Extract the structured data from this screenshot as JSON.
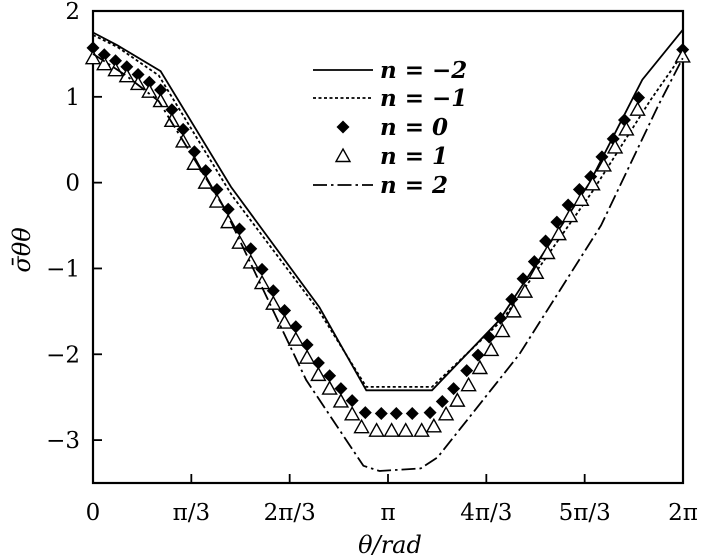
{
  "chart_data": {
    "type": "line",
    "title": "",
    "xlabel": "θ/rad",
    "ylabel": "σ̄θθ",
    "xlim": [
      0,
      6.2832
    ],
    "ylim": [
      -3.5,
      2
    ],
    "x_ticks": [
      {
        "value": 0,
        "label": "0"
      },
      {
        "value": 1.0472,
        "label": "π/3"
      },
      {
        "value": 2.0944,
        "label": "2π/3"
      },
      {
        "value": 3.1416,
        "label": "π"
      },
      {
        "value": 4.1888,
        "label": "4π/3"
      },
      {
        "value": 5.236,
        "label": "5π/3"
      },
      {
        "value": 6.2832,
        "label": "2π"
      }
    ],
    "y_ticks": [
      {
        "value": 2,
        "label": "2"
      },
      {
        "value": 1,
        "label": "1"
      },
      {
        "value": 0,
        "label": "0"
      },
      {
        "value": -1,
        "label": "−1"
      },
      {
        "value": -2,
        "label": "−2"
      },
      {
        "value": -3,
        "label": "−3"
      }
    ],
    "grid": false,
    "legend_position": "top-center",
    "series": [
      {
        "name": "n = −2",
        "style": "solid",
        "color": "#000000",
        "x": [
          0,
          0.26,
          0.72,
          1.47,
          2.41,
          2.91,
          3.61,
          4.33,
          5.29,
          5.85,
          6.28
        ],
        "y": [
          1.75,
          1.6,
          1.3,
          -0.05,
          -1.45,
          -2.42,
          -2.42,
          -1.6,
          0.0,
          1.2,
          1.78
        ]
      },
      {
        "name": "n = −1",
        "style": "dotted",
        "color": "#000000",
        "x": [
          0,
          0.26,
          0.7,
          1.48,
          2.41,
          2.91,
          3.61,
          4.36,
          5.32,
          5.93,
          6.28
        ],
        "y": [
          1.72,
          1.58,
          1.25,
          -0.15,
          -1.5,
          -2.38,
          -2.38,
          -1.6,
          -0.1,
          0.95,
          1.5
        ]
      },
      {
        "name": "n = 0",
        "style": "diamond",
        "color": "#000000",
        "x": [
          0.0,
          0.12,
          0.24,
          0.36,
          0.48,
          0.6,
          0.72,
          0.84,
          0.96,
          1.08,
          1.2,
          1.32,
          1.44,
          1.56,
          1.68,
          1.8,
          1.92,
          2.04,
          2.16,
          2.28,
          2.4,
          2.52,
          2.64,
          2.76,
          2.9,
          3.07,
          3.23,
          3.4,
          3.59,
          3.72,
          3.84,
          3.98,
          4.1,
          4.22,
          4.34,
          4.46,
          4.58,
          4.7,
          4.82,
          4.94,
          5.06,
          5.18,
          5.3,
          5.42,
          5.54,
          5.66,
          5.81,
          6.28
        ],
        "y": [
          1.57,
          1.49,
          1.42,
          1.35,
          1.26,
          1.17,
          1.08,
          0.85,
          0.62,
          0.36,
          0.14,
          -0.08,
          -0.31,
          -0.54,
          -0.77,
          -1.01,
          -1.26,
          -1.49,
          -1.68,
          -1.89,
          -2.1,
          -2.25,
          -2.4,
          -2.54,
          -2.68,
          -2.69,
          -2.69,
          -2.69,
          -2.68,
          -2.55,
          -2.4,
          -2.19,
          -2.01,
          -1.8,
          -1.58,
          -1.36,
          -1.12,
          -0.92,
          -0.68,
          -0.46,
          -0.26,
          -0.08,
          0.07,
          0.3,
          0.51,
          0.73,
          0.99,
          1.55
        ]
      },
      {
        "name": "n = 1",
        "style": "triangle",
        "color": "#000000",
        "x": [
          0.0,
          0.12,
          0.24,
          0.36,
          0.48,
          0.6,
          0.72,
          0.84,
          0.96,
          1.08,
          1.2,
          1.32,
          1.44,
          1.56,
          1.68,
          1.8,
          1.92,
          2.04,
          2.16,
          2.28,
          2.4,
          2.52,
          2.64,
          2.76,
          2.86,
          3.02,
          3.18,
          3.33,
          3.5,
          3.63,
          3.76,
          3.88,
          4.0,
          4.12,
          4.24,
          4.36,
          4.48,
          4.6,
          4.72,
          4.84,
          4.96,
          5.08,
          5.2,
          5.32,
          5.44,
          5.56,
          5.68,
          5.8,
          6.28
        ],
        "y": [
          1.45,
          1.38,
          1.31,
          1.24,
          1.15,
          1.06,
          0.95,
          0.72,
          0.48,
          0.22,
          0.0,
          -0.22,
          -0.46,
          -0.7,
          -0.93,
          -1.17,
          -1.41,
          -1.63,
          -1.83,
          -2.04,
          -2.24,
          -2.4,
          -2.55,
          -2.7,
          -2.85,
          -2.89,
          -2.89,
          -2.89,
          -2.89,
          -2.84,
          -2.7,
          -2.54,
          -2.36,
          -2.16,
          -1.95,
          -1.73,
          -1.5,
          -1.27,
          -1.05,
          -0.82,
          -0.6,
          -0.39,
          -0.2,
          -0.02,
          0.2,
          0.41,
          0.62,
          0.85,
          1.47
        ]
      },
      {
        "name": "n = 2",
        "style": "dashdot",
        "color": "#000000",
        "x": [
          0,
          0.35,
          0.7,
          1.4,
          2.27,
          2.88,
          3.05,
          3.49,
          3.67,
          4.54,
          5.41,
          6.02,
          6.28
        ],
        "y": [
          1.5,
          1.25,
          0.95,
          -0.3,
          -2.3,
          -3.3,
          -3.36,
          -3.33,
          -3.2,
          -2.0,
          -0.5,
          0.9,
          1.45
        ]
      }
    ]
  }
}
